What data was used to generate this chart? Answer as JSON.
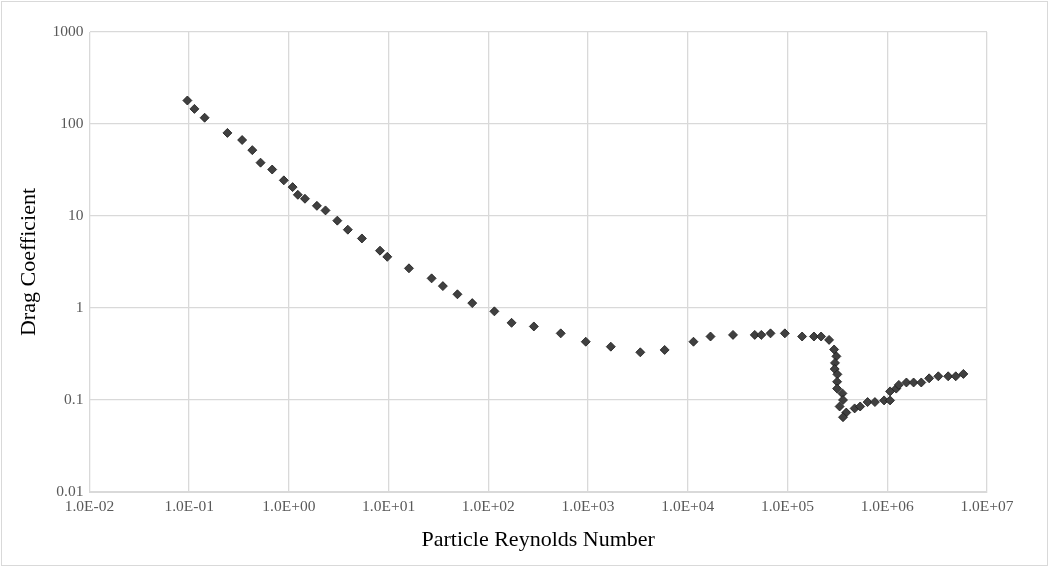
{
  "chart_data": {
    "type": "scatter",
    "xlabel": "Particle Reynolds Number",
    "ylabel": "Drag Coefficient",
    "log": "xy",
    "grid": true,
    "marker": "diamond",
    "xlim": [
      0.01,
      10000000
    ],
    "xticks": [
      {
        "value": 0.01,
        "label": "1.0E-02"
      },
      {
        "value": 0.1,
        "label": "1.0E-01"
      },
      {
        "value": 1,
        "label": "1.0E+00"
      },
      {
        "value": 10,
        "label": "1.0E+01"
      },
      {
        "value": 100,
        "label": "1.0E+02"
      },
      {
        "value": 1000,
        "label": "1.0E+03"
      },
      {
        "value": 10000,
        "label": "1.0E+04"
      },
      {
        "value": 100000,
        "label": "1.0E+05"
      },
      {
        "value": 1000000,
        "label": "1.0E+06"
      },
      {
        "value": 10000000,
        "label": "1.0E+07"
      }
    ],
    "ylim": [
      0.01,
      1000
    ],
    "yticks": [
      0.01,
      0.1,
      1,
      10,
      100,
      1000
    ],
    "series": [
      {
        "color": "#404040",
        "x": [
          0.096,
          0.113,
          0.143,
          0.242,
          0.34,
          0.43,
          0.52,
          0.68,
          0.89,
          1.09,
          1.23,
          1.45,
          1.91,
          2.33,
          3.06,
          3.9,
          5.4,
          8.2,
          9.7,
          16,
          27,
          35,
          49,
          69,
          115,
          171,
          286,
          532,
          948,
          1690,
          3340,
          5860,
          11400,
          16900,
          28400,
          46900,
          54600,
          67500,
          94000,
          140000,
          184000,
          217000,
          261000,
          293000,
          309000,
          299000,
          297000,
          316000,
          314000,
          314000,
          355000,
          360000,
          333000,
          388000,
          360000,
          471000,
          535000,
          635000,
          752000,
          929000,
          1067000,
          1067000,
          1230000,
          1306000,
          1556000,
          1837000,
          2193000,
          2630000,
          3250000,
          4080000,
          4860000,
          5800000
        ],
        "values": [
          180,
          146,
          117,
          80,
          67,
          52,
          38,
          32,
          24.4,
          20.6,
          17,
          15.4,
          12.9,
          11.5,
          8.9,
          7.1,
          5.7,
          4.2,
          3.6,
          2.7,
          2.1,
          1.73,
          1.41,
          1.13,
          0.92,
          0.69,
          0.63,
          0.53,
          0.43,
          0.38,
          0.33,
          0.35,
          0.43,
          0.49,
          0.51,
          0.51,
          0.51,
          0.53,
          0.53,
          0.49,
          0.49,
          0.49,
          0.45,
          0.354,
          0.298,
          0.253,
          0.217,
          0.19,
          0.158,
          0.133,
          0.118,
          0.1,
          0.085,
          0.073,
          0.065,
          0.081,
          0.085,
          0.095,
          0.095,
          0.099,
          0.099,
          0.124,
          0.133,
          0.146,
          0.155,
          0.155,
          0.155,
          0.172,
          0.181,
          0.181,
          0.181,
          0.192
        ]
      }
    ]
  }
}
